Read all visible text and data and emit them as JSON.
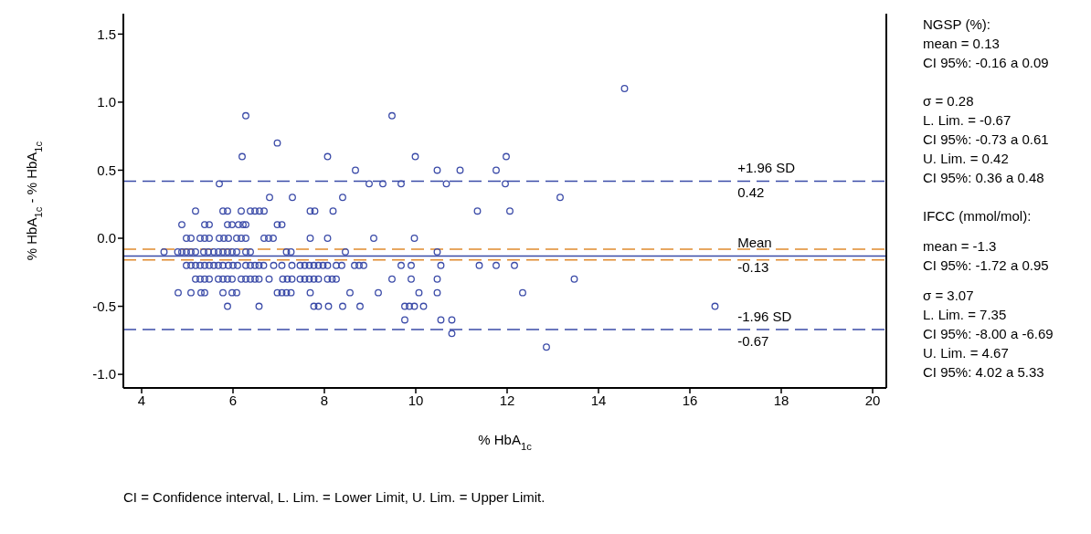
{
  "chart_data": {
    "type": "scatter",
    "xlabel": "% HbA$_{1c}$",
    "ylabel": "% HbA$_{1c}$ - % HbA$_{1c}$",
    "xlim": [
      3.6,
      20.3
    ],
    "xticks": [
      4,
      6,
      8,
      10,
      12,
      14,
      16,
      18,
      20
    ],
    "ylim": [
      -1.1,
      1.65
    ],
    "yticks": [
      {
        "value": -1,
        "label": "-1.0"
      },
      -0.5,
      {
        "value": 0,
        "label": "0.0"
      },
      0.5,
      {
        "value": 1,
        "label": "1.0"
      },
      1.5
    ],
    "marker": "circle",
    "series": [
      {
        "color": "#3b4ba8",
        "x": [
          14.57,
          6.28,
          9.48,
          6.97,
          6.2,
          8.07,
          9.99,
          11.98,
          8.68,
          10.47,
          10.97,
          11.76,
          5.7,
          8.98,
          9.28,
          9.68,
          10.67,
          11.96,
          6.8,
          7.3,
          8.4,
          13.16,
          5.18,
          5.78,
          5.88,
          6.18,
          6.38,
          6.48,
          6.58,
          6.68,
          7.69,
          7.79,
          8.19,
          11.35,
          12.06,
          4.88,
          5.38,
          5.48,
          5.88,
          5.98,
          6.12,
          6.22,
          6.28,
          6.97,
          7.07,
          4.98,
          5.08,
          5.28,
          5.38,
          5.48,
          5.7,
          5.8,
          5.9,
          6.08,
          6.18,
          6.28,
          6.68,
          6.78,
          6.88,
          7.69,
          8.07,
          9.08,
          9.97,
          4.49,
          4.79,
          4.88,
          4.98,
          5.08,
          5.18,
          5.36,
          5.46,
          5.58,
          5.68,
          5.78,
          5.88,
          5.98,
          6.08,
          6.28,
          6.38,
          7.17,
          7.27,
          8.46,
          10.47,
          4.98,
          5.08,
          5.18,
          5.28,
          5.38,
          5.48,
          5.58,
          5.68,
          5.78,
          5.9,
          6.0,
          6.1,
          6.28,
          6.38,
          6.48,
          6.57,
          6.67,
          6.89,
          7.07,
          7.29,
          7.47,
          7.57,
          7.67,
          7.77,
          7.87,
          7.97,
          8.07,
          8.26,
          8.38,
          8.66,
          8.76,
          8.86,
          9.68,
          9.9,
          10.55,
          11.39,
          11.76,
          12.16,
          5.18,
          5.28,
          5.38,
          5.48,
          5.68,
          5.78,
          5.88,
          5.98,
          6.18,
          6.28,
          6.38,
          6.48,
          6.57,
          6.79,
          7.09,
          7.19,
          7.29,
          7.47,
          7.57,
          7.67,
          7.77,
          7.87,
          8.07,
          8.17,
          8.26,
          9.48,
          9.9,
          10.47,
          13.47,
          4.8,
          5.08,
          5.3,
          5.38,
          5.78,
          5.98,
          6.08,
          6.97,
          7.07,
          7.17,
          7.27,
          7.69,
          8.56,
          9.18,
          10.07,
          10.47,
          12.34,
          5.88,
          6.57,
          7.77,
          7.87,
          8.09,
          8.4,
          8.78,
          9.76,
          9.86,
          9.97,
          10.17,
          16.55,
          9.76,
          10.55,
          10.79,
          10.79,
          12.86
        ],
        "values": [
          1.1,
          0.9,
          0.9,
          0.7,
          0.6,
          0.6,
          0.6,
          0.6,
          0.5,
          0.5,
          0.5,
          0.5,
          0.4,
          0.4,
          0.4,
          0.4,
          0.4,
          0.4,
          0.3,
          0.3,
          0.3,
          0.3,
          0.2,
          0.2,
          0.2,
          0.2,
          0.2,
          0.2,
          0.2,
          0.2,
          0.2,
          0.2,
          0.2,
          0.2,
          0.2,
          0.1,
          0.1,
          0.1,
          0.1,
          0.1,
          0.1,
          0.1,
          0.1,
          0.1,
          0.1,
          0,
          0,
          0,
          0,
          0,
          0,
          0,
          0,
          0,
          0,
          0,
          0,
          0,
          0,
          0,
          0,
          0,
          0,
          -0.1,
          -0.1,
          -0.1,
          -0.1,
          -0.1,
          -0.1,
          -0.1,
          -0.1,
          -0.1,
          -0.1,
          -0.1,
          -0.1,
          -0.1,
          -0.1,
          -0.1,
          -0.1,
          -0.1,
          -0.1,
          -0.1,
          -0.1,
          -0.2,
          -0.2,
          -0.2,
          -0.2,
          -0.2,
          -0.2,
          -0.2,
          -0.2,
          -0.2,
          -0.2,
          -0.2,
          -0.2,
          -0.2,
          -0.2,
          -0.2,
          -0.2,
          -0.2,
          -0.2,
          -0.2,
          -0.2,
          -0.2,
          -0.2,
          -0.2,
          -0.2,
          -0.2,
          -0.2,
          -0.2,
          -0.2,
          -0.2,
          -0.2,
          -0.2,
          -0.2,
          -0.2,
          -0.2,
          -0.2,
          -0.2,
          -0.2,
          -0.2,
          -0.3,
          -0.3,
          -0.3,
          -0.3,
          -0.3,
          -0.3,
          -0.3,
          -0.3,
          -0.3,
          -0.3,
          -0.3,
          -0.3,
          -0.3,
          -0.3,
          -0.3,
          -0.3,
          -0.3,
          -0.3,
          -0.3,
          -0.3,
          -0.3,
          -0.3,
          -0.3,
          -0.3,
          -0.3,
          -0.3,
          -0.3,
          -0.3,
          -0.3,
          -0.4,
          -0.4,
          -0.4,
          -0.4,
          -0.4,
          -0.4,
          -0.4,
          -0.4,
          -0.4,
          -0.4,
          -0.4,
          -0.4,
          -0.4,
          -0.4,
          -0.4,
          -0.4,
          -0.4,
          -0.5,
          -0.5,
          -0.5,
          -0.5,
          -0.5,
          -0.5,
          -0.5,
          -0.5,
          -0.5,
          -0.5,
          -0.5,
          -0.5,
          -0.6,
          -0.6,
          -0.6,
          -0.7,
          -0.8
        ]
      }
    ],
    "ref_lines": [
      {
        "axis": "y",
        "value": 0.42,
        "label": "+1.96 SD\n0.42",
        "color": "#3b4ba8",
        "line_style": "dashed"
      },
      {
        "axis": "y",
        "value": -0.13,
        "label": "Mean\n-0.13",
        "color": "#3b4ba8",
        "line_style": "solid"
      },
      {
        "axis": "y",
        "value": -0.67,
        "label": "-1.96 SD\n-0.67",
        "color": "#3b4ba8",
        "line_style": "dashed"
      },
      {
        "axis": "y",
        "value": -0.08,
        "color": "#e08a2e",
        "line_style": "dashed"
      },
      {
        "axis": "y",
        "value": -0.16,
        "color": "#e08a2e",
        "line_style": "dashed"
      }
    ],
    "annotations": [
      "NGSP (%):\nmean = 0.13\nCI 95%: -0.16 a 0.09",
      "σ = 0.28\nL. Lim. = -0.67\nCI 95%: -0.73 a 0.61\nU. Lim. = 0.42\nCI 95%: 0.36 a 0.48",
      "IFCC (mmol/mol):",
      "mean = -1.3\nCI 95%: -1.72 a 0.95",
      "σ = 3.07\nL. Lim. = 7.35\nCI 95%: -8.00 a -6.69\nU. Lim. = 4.67\nCI 95%: 4.02 a 5.33",
      "CI = Confidence interval, L. Lim. = Lower Limit, U. Lim. = Upper Limit."
    ]
  }
}
